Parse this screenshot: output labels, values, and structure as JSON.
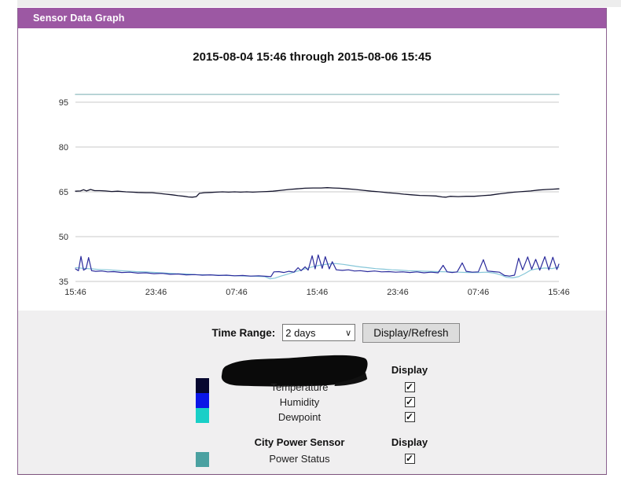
{
  "window": {
    "title": "Sensor Data Graph"
  },
  "chart": {
    "title": "2015-08-04 15:46 through 2015-08-06 15:45"
  },
  "chart_data": {
    "type": "line",
    "title": "2015-08-04 15:46 through 2015-08-06 15:45",
    "xlabel": "",
    "ylabel": "",
    "x_ticks": [
      "15:46",
      "23:46",
      "07:46",
      "15:46",
      "23:46",
      "07:46",
      "15:46"
    ],
    "x_range_hours": [
      0,
      48
    ],
    "y_ticks": [
      35,
      50,
      65,
      80,
      95
    ],
    "ylim": [
      35,
      95
    ],
    "grid": true,
    "legend_position": "below-as-checkbox-table",
    "grid_color": "#c9c9c9",
    "tick_color": "#333333",
    "series": [
      {
        "name": "Power Status",
        "color": "#a3c8ca",
        "width": 1.5,
        "points": [
          [
            0,
            97.6
          ],
          [
            48,
            97.6
          ]
        ]
      },
      {
        "name": "Dewpoint",
        "color": "#85c6d8",
        "width": 1.2,
        "points": [
          [
            0,
            39.6
          ],
          [
            0.8,
            39.4
          ],
          [
            1.6,
            39.2
          ],
          [
            2.4,
            39.0
          ],
          [
            3.2,
            38.9
          ],
          [
            4,
            38.7
          ],
          [
            5,
            38.5
          ],
          [
            6,
            38.3
          ],
          [
            7,
            38.2
          ],
          [
            8,
            38.0
          ],
          [
            9,
            37.8
          ],
          [
            10,
            37.6
          ],
          [
            11,
            37.5
          ],
          [
            12,
            37.3
          ],
          [
            13,
            37.2
          ],
          [
            14,
            37.1
          ],
          [
            15,
            37.0
          ],
          [
            16,
            36.9
          ],
          [
            17,
            36.8
          ],
          [
            18,
            36.7
          ],
          [
            18.8,
            36.6
          ],
          [
            19.3,
            35.9
          ],
          [
            19.8,
            36.1
          ],
          [
            20.4,
            36.8
          ],
          [
            21,
            37.4
          ],
          [
            21.8,
            38.2
          ],
          [
            22.6,
            39.0
          ],
          [
            23.4,
            39.8
          ],
          [
            24.2,
            40.4
          ],
          [
            25,
            40.8
          ],
          [
            25.8,
            41.0
          ],
          [
            26.6,
            40.7
          ],
          [
            27.4,
            40.3
          ],
          [
            28.2,
            39.9
          ],
          [
            29,
            39.6
          ],
          [
            29.8,
            39.3
          ],
          [
            30.6,
            39.1
          ],
          [
            31.4,
            38.9
          ],
          [
            32.2,
            38.8
          ],
          [
            33,
            38.6
          ],
          [
            34,
            38.5
          ],
          [
            35,
            38.4
          ],
          [
            36,
            38.3
          ],
          [
            37,
            38.2
          ],
          [
            38,
            38.1
          ],
          [
            39,
            38.0
          ],
          [
            40,
            38.0
          ],
          [
            40.8,
            38.1
          ],
          [
            41.6,
            37.8
          ],
          [
            42.2,
            37.2
          ],
          [
            42.8,
            36.4
          ],
          [
            43.4,
            36.2
          ],
          [
            44,
            36.6
          ],
          [
            44.6,
            37.6
          ],
          [
            45.2,
            38.8
          ],
          [
            45.8,
            39.2
          ],
          [
            46.6,
            39.5
          ],
          [
            47.3,
            39.3
          ],
          [
            48,
            39.8
          ]
        ]
      },
      {
        "name": "Humidity",
        "color": "#2b2b9c",
        "width": 1.2,
        "points": [
          [
            0,
            39.2
          ],
          [
            0.3,
            38.6
          ],
          [
            0.55,
            43.4
          ],
          [
            0.8,
            38.8
          ],
          [
            1.05,
            39.3
          ],
          [
            1.3,
            43.0
          ],
          [
            1.6,
            38.6
          ],
          [
            2,
            38.4
          ],
          [
            2.6,
            38.5
          ],
          [
            3.2,
            38.2
          ],
          [
            3.8,
            38.3
          ],
          [
            4.6,
            38.0
          ],
          [
            5.4,
            38.1
          ],
          [
            6.2,
            37.8
          ],
          [
            7,
            37.9
          ],
          [
            7.8,
            37.6
          ],
          [
            8.6,
            37.7
          ],
          [
            9.4,
            37.4
          ],
          [
            10.2,
            37.5
          ],
          [
            11,
            37.2
          ],
          [
            11.8,
            37.3
          ],
          [
            12.6,
            37.1
          ],
          [
            13.4,
            37.2
          ],
          [
            14.2,
            37.0
          ],
          [
            15,
            37.1
          ],
          [
            15.8,
            36.9
          ],
          [
            16.6,
            37.0
          ],
          [
            17.4,
            36.8
          ],
          [
            18.2,
            36.9
          ],
          [
            19,
            36.7
          ],
          [
            19.4,
            36.6
          ],
          [
            19.7,
            38.2
          ],
          [
            20.2,
            38.3
          ],
          [
            20.7,
            38.0
          ],
          [
            21.2,
            38.4
          ],
          [
            21.7,
            38.1
          ],
          [
            22.1,
            39.6
          ],
          [
            22.4,
            38.6
          ],
          [
            22.8,
            39.9
          ],
          [
            23.1,
            38.8
          ],
          [
            23.5,
            43.6
          ],
          [
            23.8,
            39.2
          ],
          [
            24.1,
            43.9
          ],
          [
            24.5,
            39.4
          ],
          [
            24.8,
            43.3
          ],
          [
            25.2,
            39.2
          ],
          [
            25.5,
            41.6
          ],
          [
            25.9,
            38.9
          ],
          [
            26.5,
            38.7
          ],
          [
            27.1,
            38.9
          ],
          [
            27.7,
            38.5
          ],
          [
            28.3,
            38.6
          ],
          [
            29,
            38.3
          ],
          [
            29.7,
            38.5
          ],
          [
            30.4,
            38.2
          ],
          [
            31.1,
            38.3
          ],
          [
            31.8,
            38.1
          ],
          [
            32.5,
            38.2
          ],
          [
            33.2,
            38.0
          ],
          [
            33.9,
            38.2
          ],
          [
            34.6,
            37.9
          ],
          [
            35.3,
            38.1
          ],
          [
            36,
            37.9
          ],
          [
            36.5,
            40.4
          ],
          [
            36.9,
            38.2
          ],
          [
            37.4,
            38.0
          ],
          [
            37.9,
            38.2
          ],
          [
            38.4,
            41.2
          ],
          [
            38.8,
            38.4
          ],
          [
            39.4,
            38.1
          ],
          [
            40,
            38.2
          ],
          [
            40.5,
            42.3
          ],
          [
            40.9,
            38.5
          ],
          [
            41.5,
            38.3
          ],
          [
            42.1,
            38.1
          ],
          [
            42.6,
            37.0
          ],
          [
            43.1,
            36.8
          ],
          [
            43.6,
            37.1
          ],
          [
            44,
            42.8
          ],
          [
            44.4,
            38.9
          ],
          [
            44.9,
            43.2
          ],
          [
            45.3,
            39.1
          ],
          [
            45.7,
            42.4
          ],
          [
            46.1,
            38.8
          ],
          [
            46.6,
            43.3
          ],
          [
            47,
            38.9
          ],
          [
            47.4,
            43.1
          ],
          [
            47.8,
            39.0
          ],
          [
            48,
            40.8
          ]
        ]
      },
      {
        "name": "Temperature",
        "color": "#15152e",
        "width": 1.3,
        "points": [
          [
            0,
            65.2
          ],
          [
            0.5,
            65.3
          ],
          [
            0.8,
            65.7
          ],
          [
            1.1,
            65.3
          ],
          [
            1.5,
            65.8
          ],
          [
            1.9,
            65.4
          ],
          [
            2.4,
            65.4
          ],
          [
            3,
            65.3
          ],
          [
            3.6,
            65.1
          ],
          [
            4.2,
            65.2
          ],
          [
            5,
            65.0
          ],
          [
            5.6,
            64.9
          ],
          [
            6.2,
            64.8
          ],
          [
            7,
            64.7
          ],
          [
            7.6,
            64.7
          ],
          [
            8.2,
            64.5
          ],
          [
            9,
            64.2
          ],
          [
            9.6,
            64.0
          ],
          [
            10.2,
            63.7
          ],
          [
            10.8,
            63.5
          ],
          [
            11.2,
            63.3
          ],
          [
            11.6,
            63.2
          ],
          [
            12,
            63.4
          ],
          [
            12.3,
            64.5
          ],
          [
            12.8,
            64.7
          ],
          [
            13.4,
            64.8
          ],
          [
            14,
            64.9
          ],
          [
            14.6,
            65.0
          ],
          [
            15.2,
            64.9
          ],
          [
            15.8,
            65.0
          ],
          [
            16.4,
            64.9
          ],
          [
            17,
            65.0
          ],
          [
            17.6,
            64.9
          ],
          [
            18.2,
            65.0
          ],
          [
            19,
            65.1
          ],
          [
            19.6,
            65.2
          ],
          [
            20.4,
            65.5
          ],
          [
            21.2,
            65.8
          ],
          [
            22,
            66.0
          ],
          [
            22.8,
            66.2
          ],
          [
            23.6,
            66.3
          ],
          [
            24.4,
            66.3
          ],
          [
            25,
            66.4
          ],
          [
            25.6,
            66.3
          ],
          [
            26.2,
            66.2
          ],
          [
            27,
            66.0
          ],
          [
            27.8,
            65.8
          ],
          [
            28.6,
            65.5
          ],
          [
            29.4,
            65.2
          ],
          [
            30.2,
            65.0
          ],
          [
            31,
            64.7
          ],
          [
            31.8,
            64.5
          ],
          [
            32.6,
            64.2
          ],
          [
            33.4,
            64.0
          ],
          [
            34.2,
            63.8
          ],
          [
            35,
            63.7
          ],
          [
            35.8,
            63.6
          ],
          [
            36.4,
            63.3
          ],
          [
            36.8,
            63.2
          ],
          [
            37.2,
            63.5
          ],
          [
            38,
            63.4
          ],
          [
            38.8,
            63.5
          ],
          [
            39.6,
            63.5
          ],
          [
            40.4,
            63.7
          ],
          [
            41.2,
            63.9
          ],
          [
            42,
            64.3
          ],
          [
            42.8,
            64.6
          ],
          [
            43.6,
            64.9
          ],
          [
            44.4,
            65.1
          ],
          [
            45.2,
            65.3
          ],
          [
            46,
            65.6
          ],
          [
            46.8,
            65.8
          ],
          [
            47.4,
            65.9
          ],
          [
            48,
            66.0
          ]
        ]
      }
    ]
  },
  "controls": {
    "time_range_label": "Time Range:",
    "time_range_value": "2 days",
    "refresh_button": "Display/Refresh"
  },
  "legend": {
    "groups": [
      {
        "sensor_name": "",
        "sensor_name_redacted": true,
        "display_header": "Display",
        "rows": [
          {
            "label": "Temperature",
            "swatch": "#07072f",
            "checked": true
          },
          {
            "label": "Humidity",
            "swatch": "#0b16e6",
            "checked": true
          },
          {
            "label": "Dewpoint",
            "swatch": "#19cfc7",
            "checked": true
          }
        ]
      },
      {
        "sensor_name": "City Power Sensor",
        "sensor_name_redacted": false,
        "display_header": "Display",
        "rows": [
          {
            "label": "Power Status",
            "swatch": "#4ba1a1",
            "checked": true
          }
        ]
      }
    ]
  },
  "colors": {
    "titlebar": "#9c58a3",
    "window_border": "#8b6290",
    "controls_bg": "#f0eff0",
    "check_glyph": "✓"
  }
}
